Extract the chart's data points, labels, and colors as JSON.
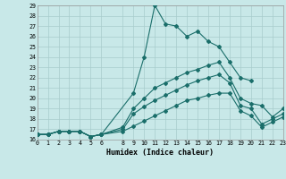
{
  "xlabel": "Humidex (Indice chaleur)",
  "bg_color": "#c8e8e8",
  "grid_color": "#a8cccc",
  "line_color": "#1a6e6a",
  "xlim": [
    0,
    23
  ],
  "ylim": [
    16,
    29
  ],
  "xtick_vals": [
    0,
    1,
    2,
    3,
    4,
    5,
    6,
    8,
    9,
    10,
    11,
    12,
    13,
    14,
    15,
    16,
    17,
    18,
    19,
    20,
    21,
    22,
    23
  ],
  "ytick_vals": [
    16,
    17,
    18,
    19,
    20,
    21,
    22,
    23,
    24,
    25,
    26,
    27,
    28,
    29
  ],
  "line1_x": [
    0,
    1,
    2,
    3,
    4,
    5,
    6,
    9,
    10,
    11,
    12,
    13,
    14,
    15,
    16,
    17,
    18,
    19,
    20
  ],
  "line1_y": [
    16.5,
    16.5,
    16.8,
    16.8,
    16.8,
    16.3,
    16.5,
    20.5,
    24.0,
    29.0,
    27.2,
    27.0,
    26.0,
    26.5,
    25.5,
    25.0,
    23.5,
    22.0,
    21.7
  ],
  "line2_x": [
    0,
    1,
    2,
    3,
    4,
    5,
    6,
    8,
    9,
    10,
    11,
    12,
    13,
    14,
    15,
    16,
    17,
    18,
    19,
    20,
    21,
    22,
    23
  ],
  "line2_y": [
    16.5,
    16.5,
    16.8,
    16.8,
    16.8,
    16.3,
    16.5,
    17.2,
    19.0,
    20.0,
    21.0,
    21.5,
    22.0,
    22.5,
    22.8,
    23.2,
    23.5,
    22.0,
    20.0,
    19.5,
    19.3,
    18.2,
    19.0
  ],
  "line3_x": [
    0,
    1,
    2,
    3,
    4,
    5,
    6,
    8,
    9,
    10,
    11,
    12,
    13,
    14,
    15,
    16,
    17,
    18,
    19,
    20,
    21,
    22,
    23
  ],
  "line3_y": [
    16.5,
    16.5,
    16.8,
    16.8,
    16.8,
    16.3,
    16.5,
    17.0,
    18.5,
    19.2,
    19.8,
    20.3,
    20.8,
    21.3,
    21.7,
    22.0,
    22.3,
    21.5,
    19.3,
    19.0,
    17.5,
    18.0,
    18.5
  ],
  "line4_x": [
    0,
    1,
    2,
    3,
    4,
    5,
    6,
    8,
    9,
    10,
    11,
    12,
    13,
    14,
    15,
    16,
    17,
    18,
    19,
    20,
    21,
    22,
    23
  ],
  "line4_y": [
    16.5,
    16.5,
    16.8,
    16.8,
    16.8,
    16.3,
    16.5,
    16.8,
    17.3,
    17.8,
    18.3,
    18.8,
    19.3,
    19.8,
    20.0,
    20.3,
    20.5,
    20.5,
    18.8,
    18.3,
    17.2,
    17.7,
    18.2
  ]
}
